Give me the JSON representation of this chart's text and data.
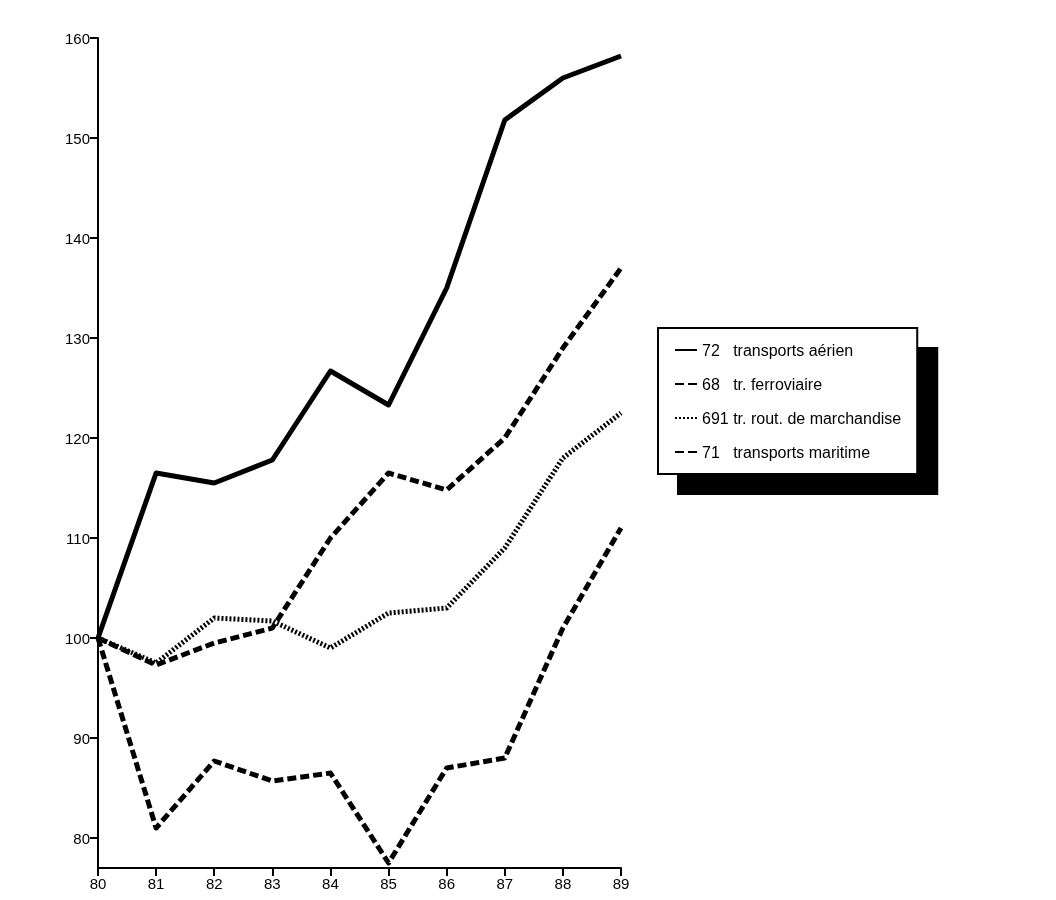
{
  "chart_data": {
    "type": "line",
    "x": [
      80,
      81,
      82,
      83,
      84,
      85,
      86,
      87,
      88,
      89
    ],
    "xlim": [
      80,
      89
    ],
    "xticks": [
      80,
      81,
      82,
      83,
      84,
      85,
      86,
      87,
      88,
      89
    ],
    "ylim": [
      77,
      160
    ],
    "yticks": [
      80,
      90,
      100,
      110,
      120,
      130,
      140,
      150,
      160
    ],
    "grid": false,
    "legend": "right",
    "marker": "none",
    "series": [
      {
        "name": "72   transports aérien",
        "color": "#000000",
        "line_style": "solid",
        "values": [
          100,
          116.5,
          115.5,
          117.8,
          126.7,
          123.3,
          135,
          151.8,
          156,
          158.2
        ]
      },
      {
        "name": "68   tr. ferroviaire",
        "color": "#000000",
        "line_style": "dashed",
        "values": [
          100,
          97.3,
          99.5,
          101,
          110,
          116.5,
          114.8,
          120,
          129,
          137
        ]
      },
      {
        "name": "691 tr. rout. de marchandise",
        "color": "#000000",
        "line_style": "dotted",
        "values": [
          100,
          97.5,
          102,
          101.7,
          99,
          102.5,
          103,
          109,
          118,
          122.5
        ]
      },
      {
        "name": "71   transports maritime",
        "color": "#000000",
        "line_style": "dashed",
        "values": [
          100,
          81,
          87.7,
          85.7,
          86.5,
          77.5,
          87,
          88,
          101,
          111
        ]
      }
    ]
  }
}
